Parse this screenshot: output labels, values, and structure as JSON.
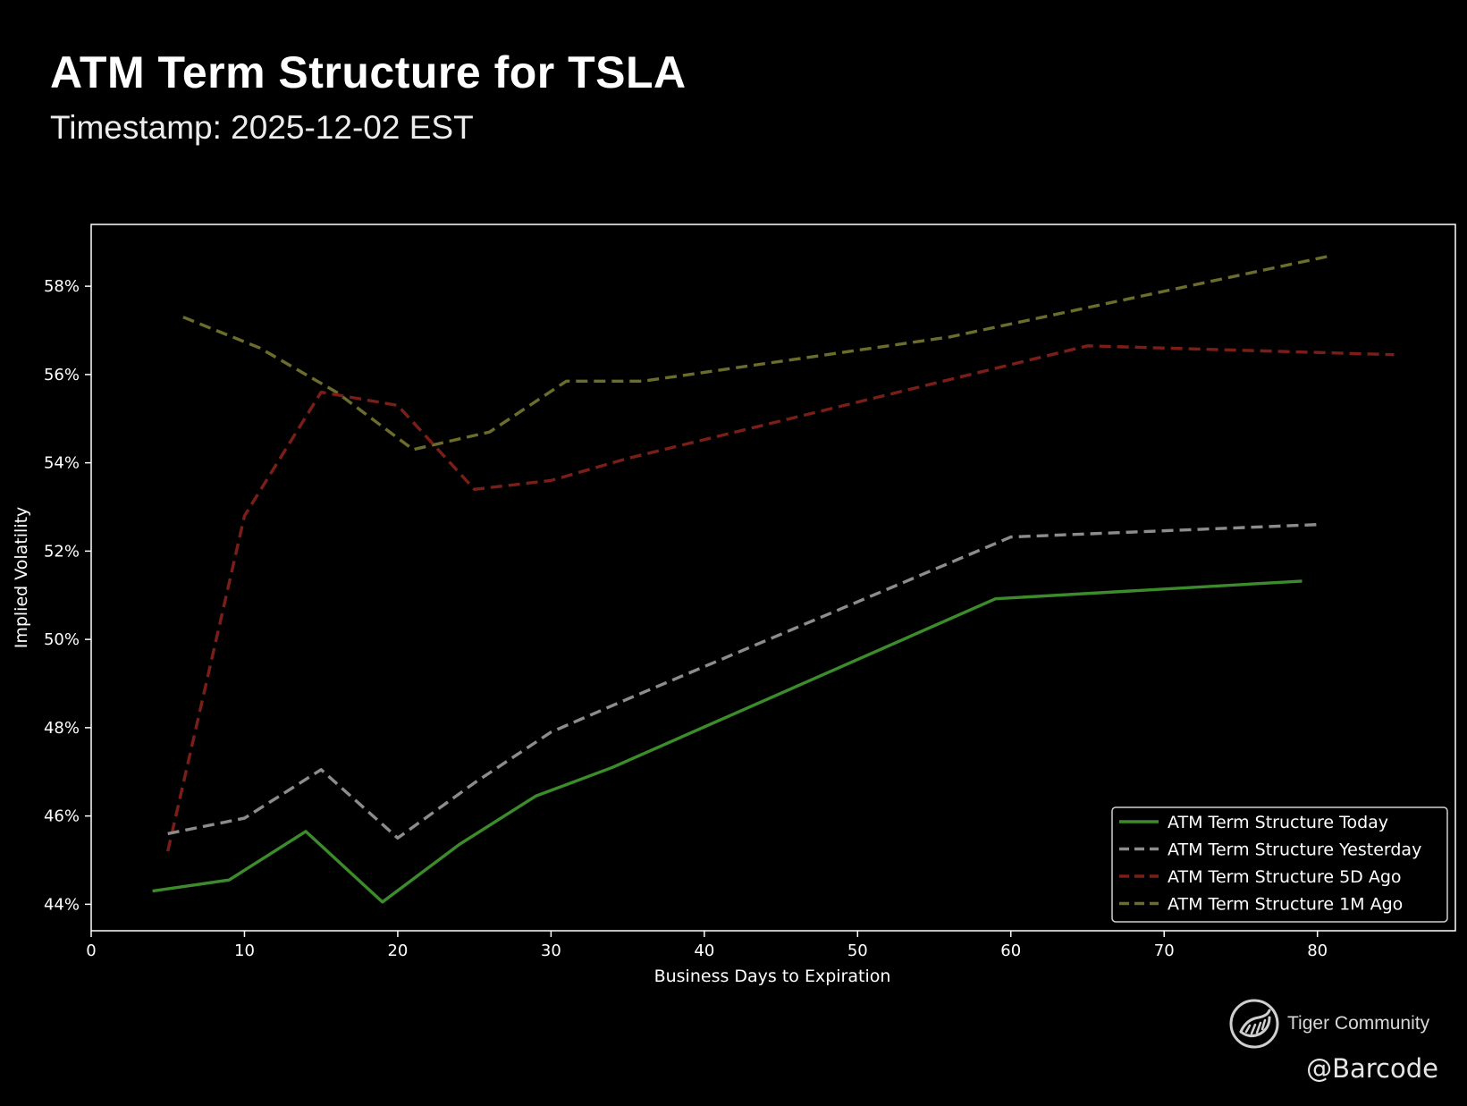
{
  "header": {
    "title": "ATM Term Structure for TSLA",
    "subtitle": "Timestamp: 2025-12-02 EST"
  },
  "chart_data": {
    "type": "line",
    "xlabel": "Business Days to Expiration",
    "ylabel": "Implied Volatility",
    "xlim": [
      0,
      89
    ],
    "ylim": [
      43.4,
      59.4
    ],
    "xticks": [
      0,
      10,
      20,
      30,
      40,
      50,
      60,
      70,
      80
    ],
    "yticks": [
      44,
      46,
      48,
      50,
      52,
      54,
      56,
      58
    ],
    "ytick_labels": [
      "44%",
      "46%",
      "48%",
      "50%",
      "52%",
      "54%",
      "56%",
      "58%"
    ],
    "grid": false,
    "legend_position": "bottom-right",
    "series": [
      {
        "name": "ATM Term Structure Today",
        "color": "#3c8c2c",
        "dash": "solid",
        "x": [
          4,
          9,
          14,
          19,
          24,
          29,
          34,
          59,
          79
        ],
        "y": [
          44.3,
          44.55,
          45.65,
          44.05,
          45.35,
          46.45,
          47.1,
          50.92,
          51.32
        ]
      },
      {
        "name": "ATM Term Structure Yesterday",
        "color": "#8c8c8c",
        "dash": "dashed",
        "x": [
          5,
          10,
          15,
          20,
          25,
          30,
          35,
          60,
          80
        ],
        "y": [
          45.6,
          45.95,
          47.05,
          45.5,
          46.75,
          47.9,
          48.65,
          52.32,
          52.6
        ]
      },
      {
        "name": "ATM Term Structure 5D Ago",
        "color": "#7c1e18",
        "dash": "dashed",
        "x": [
          5,
          10,
          15,
          20,
          25,
          30,
          35,
          65,
          85
        ],
        "y": [
          45.2,
          52.8,
          55.6,
          55.3,
          53.4,
          53.6,
          54.1,
          56.65,
          56.45
        ]
      },
      {
        "name": "ATM Term Structure 1M Ago",
        "color": "#6c6c2c",
        "dash": "dashed",
        "x": [
          6,
          11,
          16,
          21,
          26,
          31,
          36,
          56,
          81
        ],
        "y": [
          57.3,
          56.6,
          55.6,
          54.3,
          54.7,
          55.85,
          55.85,
          56.85,
          58.7
        ]
      }
    ]
  },
  "branding": {
    "logo_icon": "tiger-community-logo-icon",
    "name": "Tiger Community",
    "handle": "@Barcode"
  }
}
